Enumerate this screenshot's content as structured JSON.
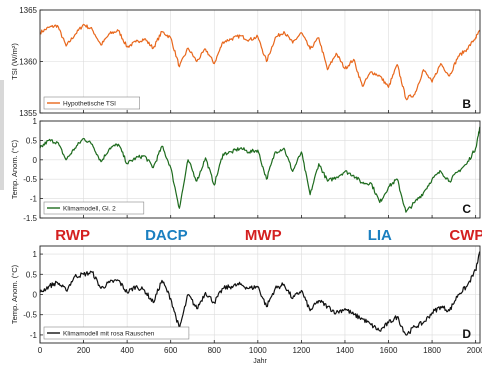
{
  "chart_data": [
    {
      "type": "line",
      "panel_letter": "B",
      "ylabel": "TSI (W/m²)",
      "xlim": [
        0,
        2020
      ],
      "ylim": [
        1355,
        1365
      ],
      "yticks": [
        1355,
        1360,
        1365
      ],
      "grid": true,
      "legend": "Hypothetische TSI",
      "legend_position": "bottom-left",
      "series": [
        {
          "name": "Hypothetische TSI",
          "color": "#e8671c",
          "x": [
            0,
            40,
            80,
            120,
            160,
            200,
            240,
            280,
            320,
            360,
            400,
            440,
            480,
            520,
            560,
            600,
            640,
            680,
            720,
            760,
            800,
            840,
            880,
            920,
            960,
            1000,
            1040,
            1080,
            1120,
            1160,
            1200,
            1240,
            1280,
            1320,
            1360,
            1400,
            1440,
            1480,
            1520,
            1560,
            1600,
            1640,
            1680,
            1720,
            1760,
            1800,
            1840,
            1880,
            1920,
            1960,
            2000,
            2020
          ],
          "y": [
            1362.8,
            1363.3,
            1363.5,
            1361.5,
            1362.6,
            1363.6,
            1363.1,
            1361.6,
            1362.7,
            1363.0,
            1361.4,
            1361.9,
            1362.2,
            1361.3,
            1362.9,
            1362.3,
            1359.5,
            1361.3,
            1360.0,
            1361.2,
            1359.8,
            1361.9,
            1362.2,
            1362.5,
            1362.1,
            1362.4,
            1360.0,
            1362.3,
            1362.9,
            1361.8,
            1362.8,
            1361.2,
            1362.3,
            1359.2,
            1360.8,
            1359.3,
            1360.2,
            1357.6,
            1359.0,
            1358.6,
            1357.5,
            1359.7,
            1356.4,
            1356.8,
            1359.2,
            1358.0,
            1359.8,
            1358.6,
            1360.5,
            1361.2,
            1362.3,
            1363.0
          ]
        }
      ]
    },
    {
      "type": "line",
      "panel_letter": "C",
      "ylabel": "Temp. Anom. (°C)",
      "xlim": [
        0,
        2020
      ],
      "ylim": [
        -1.5,
        1
      ],
      "yticks": [
        -1.5,
        -1,
        -0.5,
        0,
        0.5,
        1
      ],
      "grid": true,
      "legend": "Klimamodell, Gl. 2",
      "legend_position": "bottom-left",
      "series": [
        {
          "name": "Klimamodell, Gl. 2",
          "color": "#1e6b1e",
          "x": [
            0,
            40,
            80,
            120,
            160,
            200,
            240,
            280,
            320,
            360,
            400,
            440,
            480,
            520,
            560,
            600,
            640,
            680,
            720,
            760,
            800,
            840,
            880,
            920,
            960,
            1000,
            1040,
            1080,
            1120,
            1160,
            1200,
            1240,
            1280,
            1320,
            1360,
            1400,
            1440,
            1480,
            1520,
            1560,
            1600,
            1640,
            1680,
            1720,
            1760,
            1800,
            1840,
            1880,
            1920,
            1960,
            2000,
            2020
          ],
          "y": [
            0.3,
            0.5,
            0.45,
            0.0,
            0.3,
            0.55,
            0.4,
            -0.05,
            0.3,
            0.4,
            -0.1,
            0.05,
            0.1,
            -0.2,
            0.35,
            -0.2,
            -1.25,
            0.0,
            -0.55,
            0.05,
            -0.65,
            0.15,
            0.2,
            0.3,
            0.2,
            0.25,
            -0.5,
            0.2,
            0.3,
            -0.3,
            0.2,
            -0.9,
            -0.1,
            -0.55,
            -0.45,
            -0.3,
            -0.4,
            -0.6,
            -0.6,
            -1.1,
            -0.7,
            -0.5,
            -1.35,
            -1.1,
            -0.85,
            -0.5,
            -0.3,
            -0.55,
            -0.3,
            -0.1,
            0.3,
            0.85
          ]
        }
      ]
    },
    {
      "type": "line",
      "panel_letter": "D",
      "ylabel": "Temp. Anom. (°C)",
      "xlabel": "Jahr",
      "xlim": [
        0,
        2020
      ],
      "ylim": [
        -1.2,
        1.2
      ],
      "yticks": [
        -1,
        -0.5,
        0,
        0.5,
        1
      ],
      "xticks": [
        0,
        200,
        400,
        600,
        800,
        1000,
        1200,
        1400,
        1600,
        1800,
        2000
      ],
      "grid": true,
      "legend": "Klimamodell mit rosa Rauschen",
      "legend_position": "bottom-left",
      "series": [
        {
          "name": "Klimamodell mit rosa Rauschen",
          "color": "#111111",
          "x": [
            0,
            40,
            80,
            120,
            160,
            200,
            240,
            280,
            320,
            360,
            400,
            440,
            480,
            520,
            560,
            600,
            640,
            680,
            720,
            760,
            800,
            840,
            880,
            920,
            960,
            1000,
            1040,
            1080,
            1120,
            1160,
            1200,
            1240,
            1280,
            1320,
            1360,
            1400,
            1440,
            1480,
            1520,
            1560,
            1600,
            1640,
            1680,
            1720,
            1760,
            1800,
            1840,
            1880,
            1920,
            1960,
            2000,
            2020
          ],
          "y": [
            0.05,
            0.2,
            0.3,
            0.1,
            0.45,
            0.5,
            0.55,
            0.15,
            0.3,
            0.35,
            0.05,
            0.2,
            0.1,
            -0.2,
            0.35,
            -0.1,
            -0.85,
            0.0,
            -0.35,
            0.05,
            -0.2,
            0.15,
            0.2,
            0.25,
            0.15,
            0.2,
            -0.3,
            0.15,
            0.25,
            -0.1,
            0.1,
            -0.4,
            -0.15,
            -0.3,
            -0.45,
            -0.35,
            -0.5,
            -0.6,
            -0.75,
            -0.9,
            -0.7,
            -0.55,
            -1.0,
            -0.8,
            -0.7,
            -0.45,
            -0.3,
            -0.4,
            0.0,
            0.2,
            0.6,
            1.05
          ]
        }
      ]
    }
  ],
  "periods": [
    {
      "label": "RWP",
      "x": 150,
      "color": "#d42020"
    },
    {
      "label": "DACP",
      "x": 580,
      "color": "#1a7fc0"
    },
    {
      "label": "MWP",
      "x": 1025,
      "color": "#d42020"
    },
    {
      "label": "LIA",
      "x": 1560,
      "color": "#1a7fc0"
    },
    {
      "label": "CWP",
      "x": 1960,
      "color": "#d42020"
    }
  ]
}
